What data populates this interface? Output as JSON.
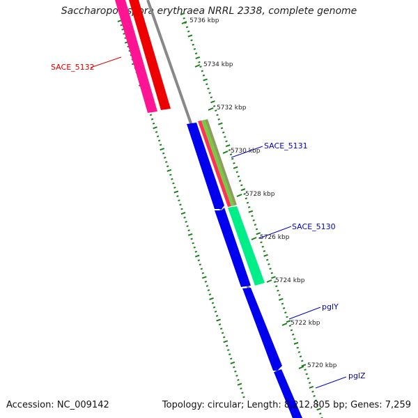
{
  "title": "Saccharopolyspora erythraea NRRL 2338, complete genome",
  "footer": {
    "accession": "Accession: NC_009142",
    "summary": "Topology: circular; Length: 8,212,805 bp; Genes: 7,259"
  },
  "colors": {
    "backbone": "#888888",
    "tick": "#1a7f1a",
    "forward_label": "#0000cc",
    "reverse_label": "#dd0000",
    "blue_gene": "#0000ee",
    "pink_gene": "#ff1493",
    "red_gene": "#ee0000",
    "green_gene": "#00ee88"
  },
  "ticks": [
    {
      "label": "5736 kbp"
    },
    {
      "label": "5734 kbp"
    },
    {
      "label": "5732 kbp"
    },
    {
      "label": "5730 kbp"
    },
    {
      "label": "5728 kbp"
    },
    {
      "label": "5726 kbp"
    },
    {
      "label": "5724 kbp"
    },
    {
      "label": "5722 kbp"
    },
    {
      "label": "5720 kbp"
    }
  ],
  "genes": [
    {
      "name": "SACE_5132",
      "label_color": "#dd0000"
    },
    {
      "name": "SACE_5131",
      "label_color": "#0000cc"
    },
    {
      "name": "SACE_5130",
      "label_color": "#0000cc"
    },
    {
      "name": "pglY",
      "label_color": "#0000cc"
    },
    {
      "name": "pglZ",
      "label_color": "#0000cc"
    }
  ]
}
